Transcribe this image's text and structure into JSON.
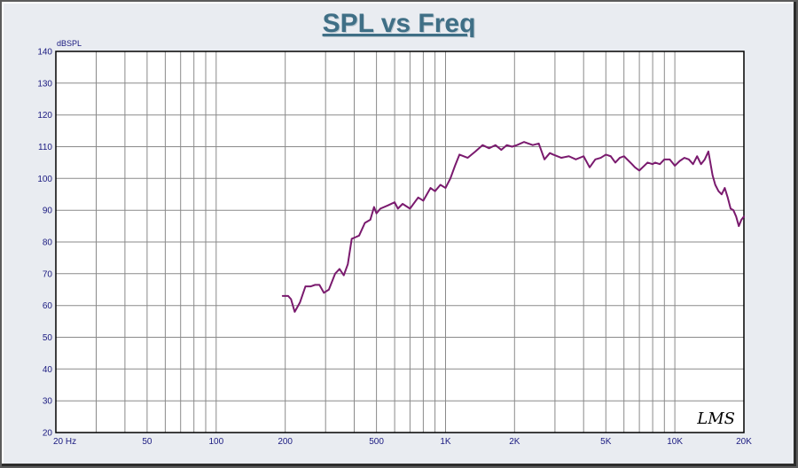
{
  "chart_data": {
    "type": "line",
    "title": "SPL vs Freq",
    "ylabel": "dBSPL",
    "xscale": "log",
    "xlim": [
      20,
      20000
    ],
    "ylim": [
      20,
      140
    ],
    "yticks": [
      20,
      30,
      40,
      50,
      60,
      70,
      80,
      90,
      100,
      110,
      120,
      130,
      140
    ],
    "xticks": [
      {
        "value": 20,
        "label": "20  Hz"
      },
      {
        "value": 50,
        "label": "50"
      },
      {
        "value": 100,
        "label": "100"
      },
      {
        "value": 200,
        "label": "200"
      },
      {
        "value": 500,
        "label": "500"
      },
      {
        "value": 1000,
        "label": "1K"
      },
      {
        "value": 2000,
        "label": "2K"
      },
      {
        "value": 5000,
        "label": "5K"
      },
      {
        "value": 10000,
        "label": "10K"
      },
      {
        "value": 20000,
        "label": "20K"
      }
    ],
    "grid": true,
    "watermark": "LMS",
    "line_color": "#7a1a6e",
    "series": [
      {
        "x": [
          195,
          206,
          212,
          220,
          232,
          245,
          258,
          270,
          282,
          295,
          310,
          330,
          345,
          360,
          375,
          390,
          405,
          420,
          445,
          470,
          488,
          500,
          520,
          560,
          600,
          620,
          650,
          700,
          760,
          800,
          860,
          900,
          950,
          1000,
          1050,
          1100,
          1150,
          1250,
          1350,
          1450,
          1550,
          1650,
          1750,
          1850,
          1950,
          2050,
          2200,
          2400,
          2550,
          2700,
          2850,
          2950,
          3200,
          3450,
          3700,
          4000,
          4250,
          4500,
          4750,
          5000,
          5250,
          5500,
          5750,
          6000,
          6500,
          6700,
          7000,
          7600,
          8000,
          8200,
          8600,
          9000,
          9500,
          10000,
          10500,
          11000,
          11500,
          12000,
          12500,
          13000,
          13500,
          14000,
          14600,
          15000,
          15500,
          16000,
          16500,
          17000,
          17500,
          18000,
          18500,
          19000,
          19500,
          20000
        ],
        "y": [
          63,
          63,
          62,
          58,
          61,
          66,
          66,
          66.5,
          66.5,
          64,
          65,
          70,
          71.5,
          69.5,
          73,
          81,
          81.5,
          82,
          86,
          87,
          91,
          89,
          90.5,
          91.5,
          92.5,
          90.5,
          92,
          90.5,
          94,
          93,
          97,
          96,
          98,
          97,
          100,
          104,
          107.5,
          106.5,
          108.5,
          110.5,
          109.5,
          110.5,
          109,
          110.5,
          110,
          110.5,
          111.5,
          110.5,
          111,
          106,
          108,
          107.5,
          106.5,
          107,
          106,
          107,
          103.5,
          106,
          106.5,
          107.5,
          107,
          105,
          106.5,
          107,
          104.5,
          103.5,
          102.5,
          105,
          104.5,
          105,
          104.5,
          106,
          106,
          104,
          105.5,
          106.5,
          106,
          104.5,
          107,
          104.5,
          106,
          108.5,
          101,
          98,
          96,
          95,
          97,
          94,
          90.5,
          90,
          88,
          85,
          87,
          88
        ]
      }
    ]
  }
}
